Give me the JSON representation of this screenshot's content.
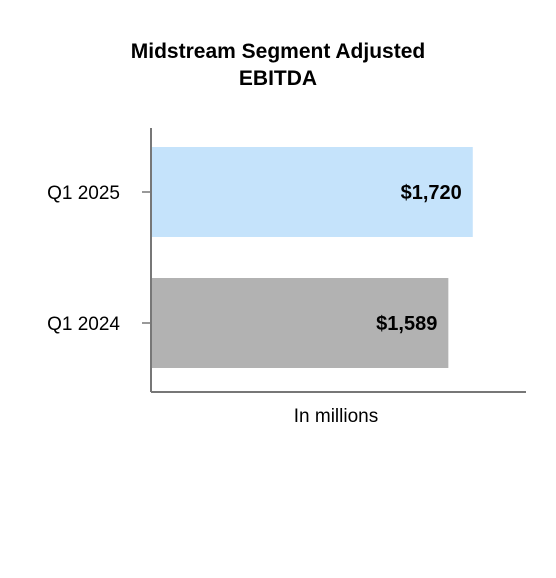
{
  "chart_data": {
    "type": "bar",
    "orientation": "horizontal",
    "title_lines": [
      "Midstream Segment Adjusted",
      "EBITDA"
    ],
    "categories": [
      "Q1 2025",
      "Q1 2024"
    ],
    "values": [
      1720,
      1589
    ],
    "data_labels": [
      "$1,720",
      "$1,589"
    ],
    "xlabel": "In millions",
    "ylabel": "",
    "xlim": [
      0,
      2000
    ],
    "grid": false,
    "legend": "none",
    "colors": [
      "#c5e3fb",
      "#b2b2b2"
    ]
  }
}
